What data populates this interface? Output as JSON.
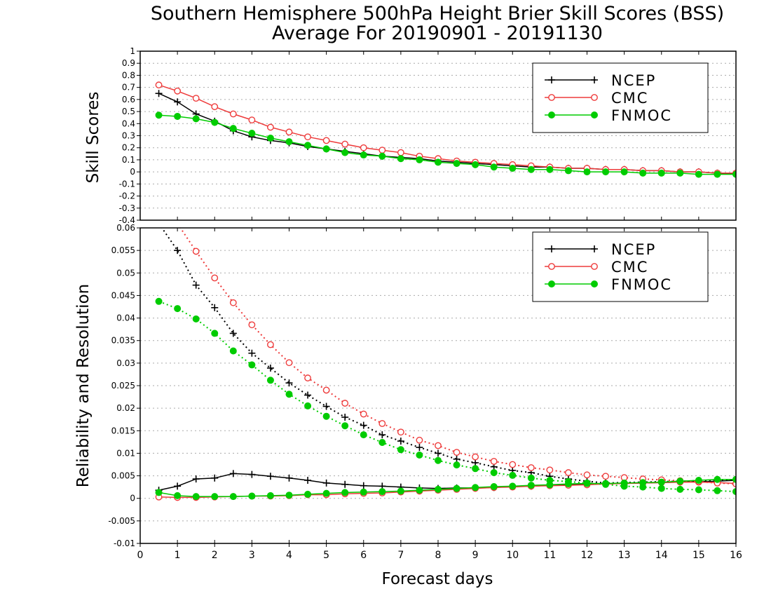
{
  "chart_data": [
    {
      "type": "line",
      "title": "Southern Hemisphere 500hPa Height Brier Skill Scores (BSS)",
      "subtitle": "Average For 20190901 - 20191130",
      "ylabel": "Skill Scores",
      "xlabel": "",
      "xlim": [
        0,
        16
      ],
      "ylim": [
        -0.4,
        1
      ],
      "yticks": [
        "-0.4",
        "-0.3",
        "-0.2",
        "-0.1",
        "0",
        "0.1",
        "0.2",
        "0.3",
        "0.4",
        "0.5",
        "0.6",
        "0.7",
        "0.8",
        "0.9",
        "1"
      ],
      "grid": true,
      "legend_position": "top-right",
      "x": [
        0.5,
        1,
        1.5,
        2,
        2.5,
        3,
        3.5,
        4,
        4.5,
        5,
        5.5,
        6,
        6.5,
        7,
        7.5,
        8,
        8.5,
        9,
        9.5,
        10,
        10.5,
        11,
        11.5,
        12,
        12.5,
        13,
        13.5,
        14,
        14.5,
        15,
        15.5,
        16
      ],
      "series": [
        {
          "name": "NCEP",
          "color": "#000000",
          "marker": "plus",
          "line": "solid",
          "values": [
            0.65,
            0.58,
            0.48,
            0.42,
            0.34,
            0.29,
            0.26,
            0.24,
            0.21,
            0.19,
            0.17,
            0.15,
            0.13,
            0.12,
            0.11,
            0.09,
            0.08,
            0.07,
            0.06,
            0.05,
            0.04,
            0.04,
            0.03,
            0.03,
            0.02,
            0.02,
            0.01,
            0.01,
            0.0,
            0.0,
            -0.01,
            -0.02
          ]
        },
        {
          "name": "CMC",
          "color": "#ee3b3b",
          "marker": "open-circle",
          "line": "solid",
          "values": [
            0.72,
            0.67,
            0.61,
            0.54,
            0.48,
            0.43,
            0.37,
            0.33,
            0.29,
            0.26,
            0.23,
            0.2,
            0.18,
            0.16,
            0.13,
            0.11,
            0.09,
            0.08,
            0.07,
            0.06,
            0.05,
            0.04,
            0.03,
            0.03,
            0.02,
            0.02,
            0.01,
            0.01,
            0.0,
            0.0,
            -0.01,
            -0.01
          ]
        },
        {
          "name": "FNMOC",
          "color": "#00cc00",
          "marker": "filled-circle",
          "line": "solid",
          "values": [
            0.47,
            0.46,
            0.44,
            0.41,
            0.36,
            0.32,
            0.28,
            0.25,
            0.22,
            0.19,
            0.16,
            0.14,
            0.13,
            0.11,
            0.1,
            0.08,
            0.07,
            0.06,
            0.04,
            0.03,
            0.02,
            0.02,
            0.01,
            0.0,
            0.0,
            0.0,
            -0.01,
            -0.01,
            -0.01,
            -0.02,
            -0.02,
            -0.02
          ]
        }
      ]
    },
    {
      "type": "line",
      "ylabel": "Reliability and Resolution",
      "xlabel": "Forecast days",
      "xlim": [
        0,
        16
      ],
      "ylim": [
        -0.01,
        0.06
      ],
      "yticks": [
        "-0.01",
        "-0.005",
        "0",
        "0.005",
        "0.01",
        "0.015",
        "0.02",
        "0.025",
        "0.03",
        "0.035",
        "0.04",
        "0.045",
        "0.05",
        "0.055",
        "0.06"
      ],
      "xticks": [
        "0",
        "1",
        "2",
        "3",
        "4",
        "5",
        "6",
        "7",
        "8",
        "9",
        "10",
        "11",
        "12",
        "13",
        "14",
        "15",
        "16"
      ],
      "grid": true,
      "legend_position": "top-right",
      "x": [
        0.5,
        1,
        1.5,
        2,
        2.5,
        3,
        3.5,
        4,
        4.5,
        5,
        5.5,
        6,
        6.5,
        7,
        7.5,
        8,
        8.5,
        9,
        9.5,
        10,
        10.5,
        11,
        11.5,
        12,
        12.5,
        13,
        13.5,
        14,
        14.5,
        15,
        15.5,
        16
      ],
      "series": [
        {
          "name": "NCEP",
          "color": "#000000",
          "marker": "plus",
          "line": "solid",
          "values": [
            0.0018,
            0.0027,
            0.0043,
            0.0045,
            0.0055,
            0.0053,
            0.0049,
            0.0045,
            0.004,
            0.0034,
            0.0031,
            0.0028,
            0.0027,
            0.0025,
            0.0023,
            0.0022,
            0.0023,
            0.0023,
            0.0024,
            0.0026,
            0.0027,
            0.0029,
            0.003,
            0.0031,
            0.0032,
            0.0033,
            0.0034,
            0.0035,
            0.0036,
            0.0037,
            0.0038,
            0.004
          ]
        },
        {
          "name": "NCEP",
          "color": "#000000",
          "marker": "plus",
          "line": "dotted",
          "values": [
            0.061,
            0.055,
            0.0473,
            0.0423,
            0.0366,
            0.0322,
            0.0289,
            0.0256,
            0.0229,
            0.0204,
            0.018,
            0.0162,
            0.0141,
            0.0127,
            0.0113,
            0.01,
            0.0087,
            0.0079,
            0.007,
            0.0062,
            0.0057,
            0.0049,
            0.0043,
            0.0038,
            0.0034,
            0.0035,
            0.0036,
            0.0037,
            0.0038,
            0.0039,
            0.004,
            0.0041
          ]
        },
        {
          "name": "CMC",
          "color": "#ee3b3b",
          "marker": "open-circle",
          "line": "solid",
          "values": [
            0.0003,
            0.0002,
            0.0002,
            0.0003,
            0.0004,
            0.0005,
            0.0005,
            0.0006,
            0.0008,
            0.0008,
            0.001,
            0.0011,
            0.0012,
            0.0014,
            0.0016,
            0.0018,
            0.002,
            0.0022,
            0.0024,
            0.0025,
            0.0027,
            0.0028,
            0.0029,
            0.003,
            0.0032,
            0.0033,
            0.0034,
            0.0035,
            0.0036,
            0.0036,
            0.0035,
            0.0033
          ]
        },
        {
          "name": "CMC",
          "color": "#ee3b3b",
          "marker": "open-circle",
          "line": "dotted",
          "values": [
            0.066,
            0.061,
            0.0548,
            0.0489,
            0.0434,
            0.0385,
            0.0341,
            0.0301,
            0.0267,
            0.024,
            0.0211,
            0.0187,
            0.0166,
            0.0147,
            0.0129,
            0.0117,
            0.0102,
            0.0092,
            0.0082,
            0.0075,
            0.0068,
            0.0063,
            0.0057,
            0.0052,
            0.0049,
            0.0046,
            0.0043,
            0.0041,
            0.0039,
            0.0037,
            0.0034,
            0.0032
          ]
        },
        {
          "name": "FNMOC",
          "color": "#00cc00",
          "marker": "filled-circle",
          "line": "solid",
          "values": [
            0.0013,
            0.0006,
            0.0004,
            0.0004,
            0.0004,
            0.0005,
            0.0006,
            0.0007,
            0.0009,
            0.0011,
            0.0013,
            0.0014,
            0.0015,
            0.0016,
            0.0018,
            0.002,
            0.0022,
            0.0024,
            0.0026,
            0.0027,
            0.0029,
            0.003,
            0.0032,
            0.0033,
            0.0033,
            0.0034,
            0.0035,
            0.0036,
            0.0038,
            0.004,
            0.0042,
            0.0042
          ]
        },
        {
          "name": "FNMOC",
          "color": "#00cc00",
          "marker": "filled-circle",
          "line": "dotted",
          "values": [
            0.0437,
            0.0421,
            0.0398,
            0.0366,
            0.0327,
            0.0296,
            0.0262,
            0.0231,
            0.0205,
            0.0182,
            0.0161,
            0.0141,
            0.0124,
            0.0108,
            0.0096,
            0.0084,
            0.0074,
            0.0066,
            0.0057,
            0.0051,
            0.0045,
            0.004,
            0.0037,
            0.0034,
            0.0031,
            0.0027,
            0.0025,
            0.0022,
            0.002,
            0.0019,
            0.0017,
            0.0015
          ]
        }
      ]
    }
  ],
  "legend": {
    "top": [
      "NCEP",
      "CMC",
      "FNMOC"
    ],
    "bottom": [
      "NCEP",
      "CMC",
      "FNMOC"
    ]
  }
}
